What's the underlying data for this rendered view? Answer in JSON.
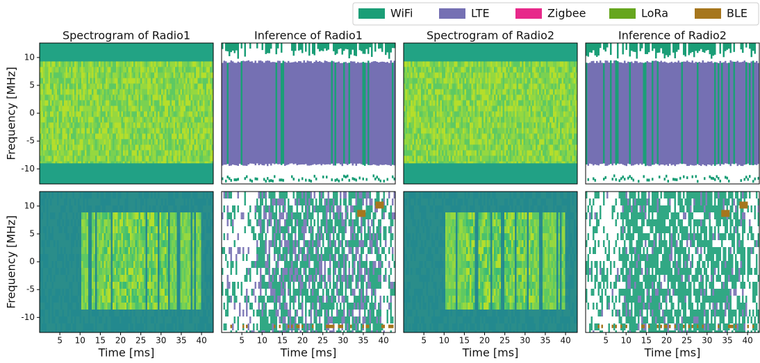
{
  "legend": [
    {
      "name": "WiFi",
      "color": "#1b9e77"
    },
    {
      "name": "LTE",
      "color": "#7570b3"
    },
    {
      "name": "Zigbee",
      "color": "#e7298a"
    },
    {
      "name": "LoRa",
      "color": "#66a61e"
    },
    {
      "name": "BLE",
      "color": "#a6761d"
    }
  ],
  "chart_data": [
    {
      "type": "heatmap",
      "title": "Spectrogram of Radio1",
      "ylabel": "Frequency [MHz]",
      "xlim": [
        0,
        42.9
      ],
      "ylim": [
        -12.7,
        12.6
      ],
      "yticks": [
        -10,
        -5,
        0,
        5,
        10
      ]
    },
    {
      "type": "heatmap",
      "title": "Inference of Radio1",
      "xlim": [
        0,
        42.9
      ],
      "ylim": [
        -12.7,
        12.6
      ]
    },
    {
      "type": "heatmap",
      "title": "Spectrogram of Radio2",
      "xlim": [
        0,
        42.9
      ],
      "ylim": [
        -12.7,
        12.6
      ]
    },
    {
      "type": "heatmap",
      "title": "Inference of Radio2",
      "xlim": [
        0,
        42.9
      ],
      "ylim": [
        -12.7,
        12.6
      ]
    },
    {
      "type": "heatmap",
      "ylabel": "Frequency [MHz]",
      "xlabel": "Time [ms]",
      "xlim": [
        0,
        42.9
      ],
      "ylim": [
        -12.7,
        12.6
      ],
      "xticks": [
        5,
        10,
        15,
        20,
        25,
        30,
        35,
        40
      ],
      "yticks": [
        -10,
        -5,
        0,
        5,
        10
      ]
    },
    {
      "type": "heatmap",
      "xlabel": "Time [ms]",
      "xlim": [
        0,
        42.9
      ],
      "ylim": [
        -12.7,
        12.6
      ],
      "xticks": [
        5,
        10,
        15,
        20,
        25,
        30,
        35,
        40
      ]
    },
    {
      "type": "heatmap",
      "xlabel": "Time [ms]",
      "xlim": [
        0,
        42.9
      ],
      "ylim": [
        -12.7,
        12.6
      ],
      "xticks": [
        5,
        10,
        15,
        20,
        25,
        30,
        35,
        40
      ]
    },
    {
      "type": "heatmap",
      "xlabel": "Time [ms]",
      "xlim": [
        0,
        42.9
      ],
      "ylim": [
        -12.7,
        12.6
      ],
      "xticks": [
        5,
        10,
        15,
        20,
        25,
        30,
        35,
        40
      ]
    }
  ]
}
